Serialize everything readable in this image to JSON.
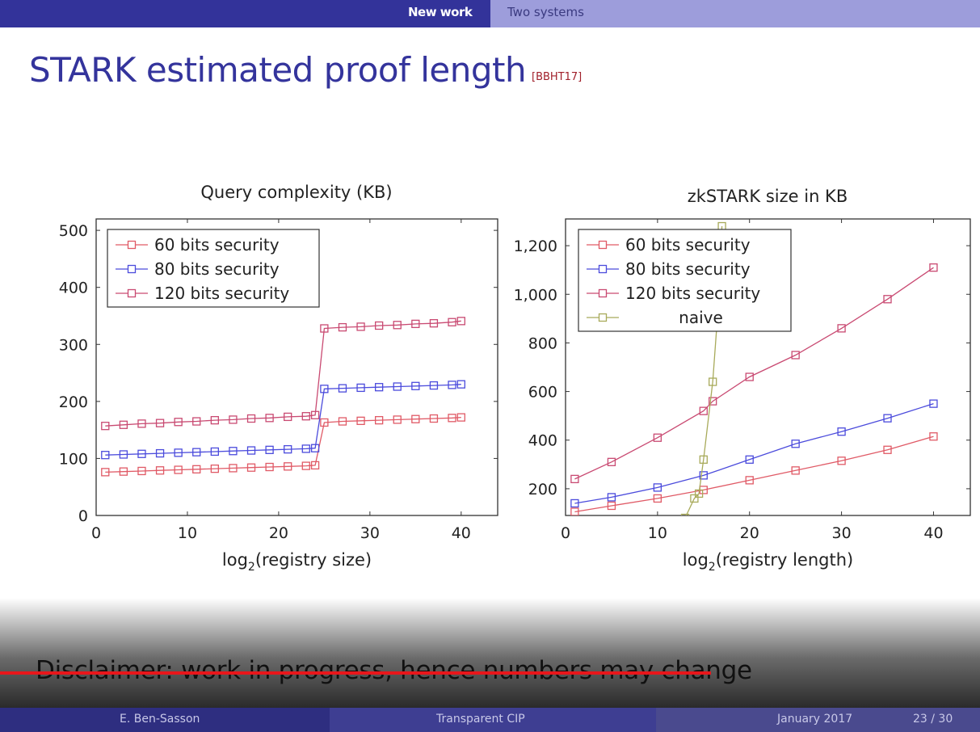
{
  "header": {
    "nav_active": "New work",
    "nav_other": "Two systems"
  },
  "slide": {
    "title": "STARK estimated proof length",
    "citation": "[BBHT17]",
    "disclaimer": "Disclaimer: work in progress, hence numbers may change"
  },
  "footer": {
    "author": "E. Ben-Sasson",
    "talk": "Transparent CIP",
    "date": "January 2017",
    "page": "23 / 30"
  },
  "colors": {
    "s60": "#e05a66",
    "s80": "#4b4bdc",
    "s120": "#c94a72",
    "naive": "#a8aa5a",
    "accent": "#33339a"
  },
  "chart_data": [
    {
      "type": "line",
      "title": "Query complexity (KB)",
      "xlabel_prefix": "log",
      "xlabel_sub": "2",
      "xlabel_suffix": "(registry size)",
      "xlim": [
        0,
        44
      ],
      "ylim": [
        0,
        520
      ],
      "xticks": [
        0,
        10,
        20,
        30,
        40
      ],
      "yticks": [
        0,
        100,
        200,
        300,
        400,
        500
      ],
      "legend_position": "top-left",
      "series": [
        {
          "name": "60 bits security",
          "color": "#e05a66",
          "x": [
            1,
            3,
            5,
            7,
            9,
            11,
            13,
            15,
            17,
            19,
            21,
            23,
            24,
            25,
            27,
            29,
            31,
            33,
            35,
            37,
            39,
            40
          ],
          "y": [
            76,
            77,
            78,
            79,
            80,
            81,
            82,
            83,
            84,
            85,
            86,
            87,
            88,
            163,
            165,
            166,
            167,
            168,
            169,
            170,
            171,
            172
          ]
        },
        {
          "name": "80 bits security",
          "color": "#4b4bdc",
          "x": [
            1,
            3,
            5,
            7,
            9,
            11,
            13,
            15,
            17,
            19,
            21,
            23,
            24,
            25,
            27,
            29,
            31,
            33,
            35,
            37,
            39,
            40
          ],
          "y": [
            106,
            107,
            108,
            109,
            110,
            111,
            112,
            113,
            114,
            115,
            116,
            117,
            118,
            222,
            223,
            224,
            225,
            226,
            227,
            228,
            229,
            230
          ]
        },
        {
          "name": "120 bits security",
          "color": "#c94a72",
          "x": [
            1,
            3,
            5,
            7,
            9,
            11,
            13,
            15,
            17,
            19,
            21,
            23,
            24,
            25,
            27,
            29,
            31,
            33,
            35,
            37,
            39,
            40
          ],
          "y": [
            157,
            159,
            161,
            162,
            164,
            165,
            167,
            168,
            170,
            171,
            173,
            174,
            176,
            328,
            330,
            331,
            333,
            334,
            336,
            337,
            339,
            341
          ]
        }
      ]
    },
    {
      "type": "line",
      "title": "zkSTARK size in KB",
      "xlabel_prefix": "log",
      "xlabel_sub": "2",
      "xlabel_suffix": "(registry length)",
      "xlim": [
        0,
        44
      ],
      "ylim": [
        90,
        1310
      ],
      "xticks": [
        0,
        10,
        20,
        30,
        40
      ],
      "yticks": [
        200,
        400,
        600,
        800,
        1000,
        1200
      ],
      "ytick_labels": [
        "200",
        "400",
        "600",
        "800",
        "1,000",
        "1,200"
      ],
      "legend_position": "top-left",
      "series": [
        {
          "name": "60 bits security",
          "color": "#e05a66",
          "x": [
            1,
            5,
            10,
            15,
            20,
            25,
            30,
            35,
            40
          ],
          "y": [
            105,
            130,
            160,
            195,
            235,
            275,
            315,
            360,
            415
          ]
        },
        {
          "name": "80 bits security",
          "color": "#4b4bdc",
          "x": [
            1,
            5,
            10,
            15,
            20,
            25,
            30,
            35,
            40
          ],
          "y": [
            140,
            165,
            205,
            255,
            320,
            385,
            435,
            490,
            550
          ]
        },
        {
          "name": "120 bits security",
          "color": "#c94a72",
          "x": [
            1,
            5,
            10,
            15,
            16,
            20,
            25,
            30,
            35,
            40
          ],
          "y": [
            240,
            310,
            410,
            520,
            560,
            660,
            750,
            860,
            980,
            1110
          ]
        },
        {
          "name": "naive",
          "color": "#a8aa5a",
          "x": [
            13,
            14,
            14.5,
            15,
            16,
            16.5,
            17
          ],
          "y": [
            80,
            160,
            180,
            320,
            640,
            900,
            1280
          ]
        }
      ]
    }
  ]
}
